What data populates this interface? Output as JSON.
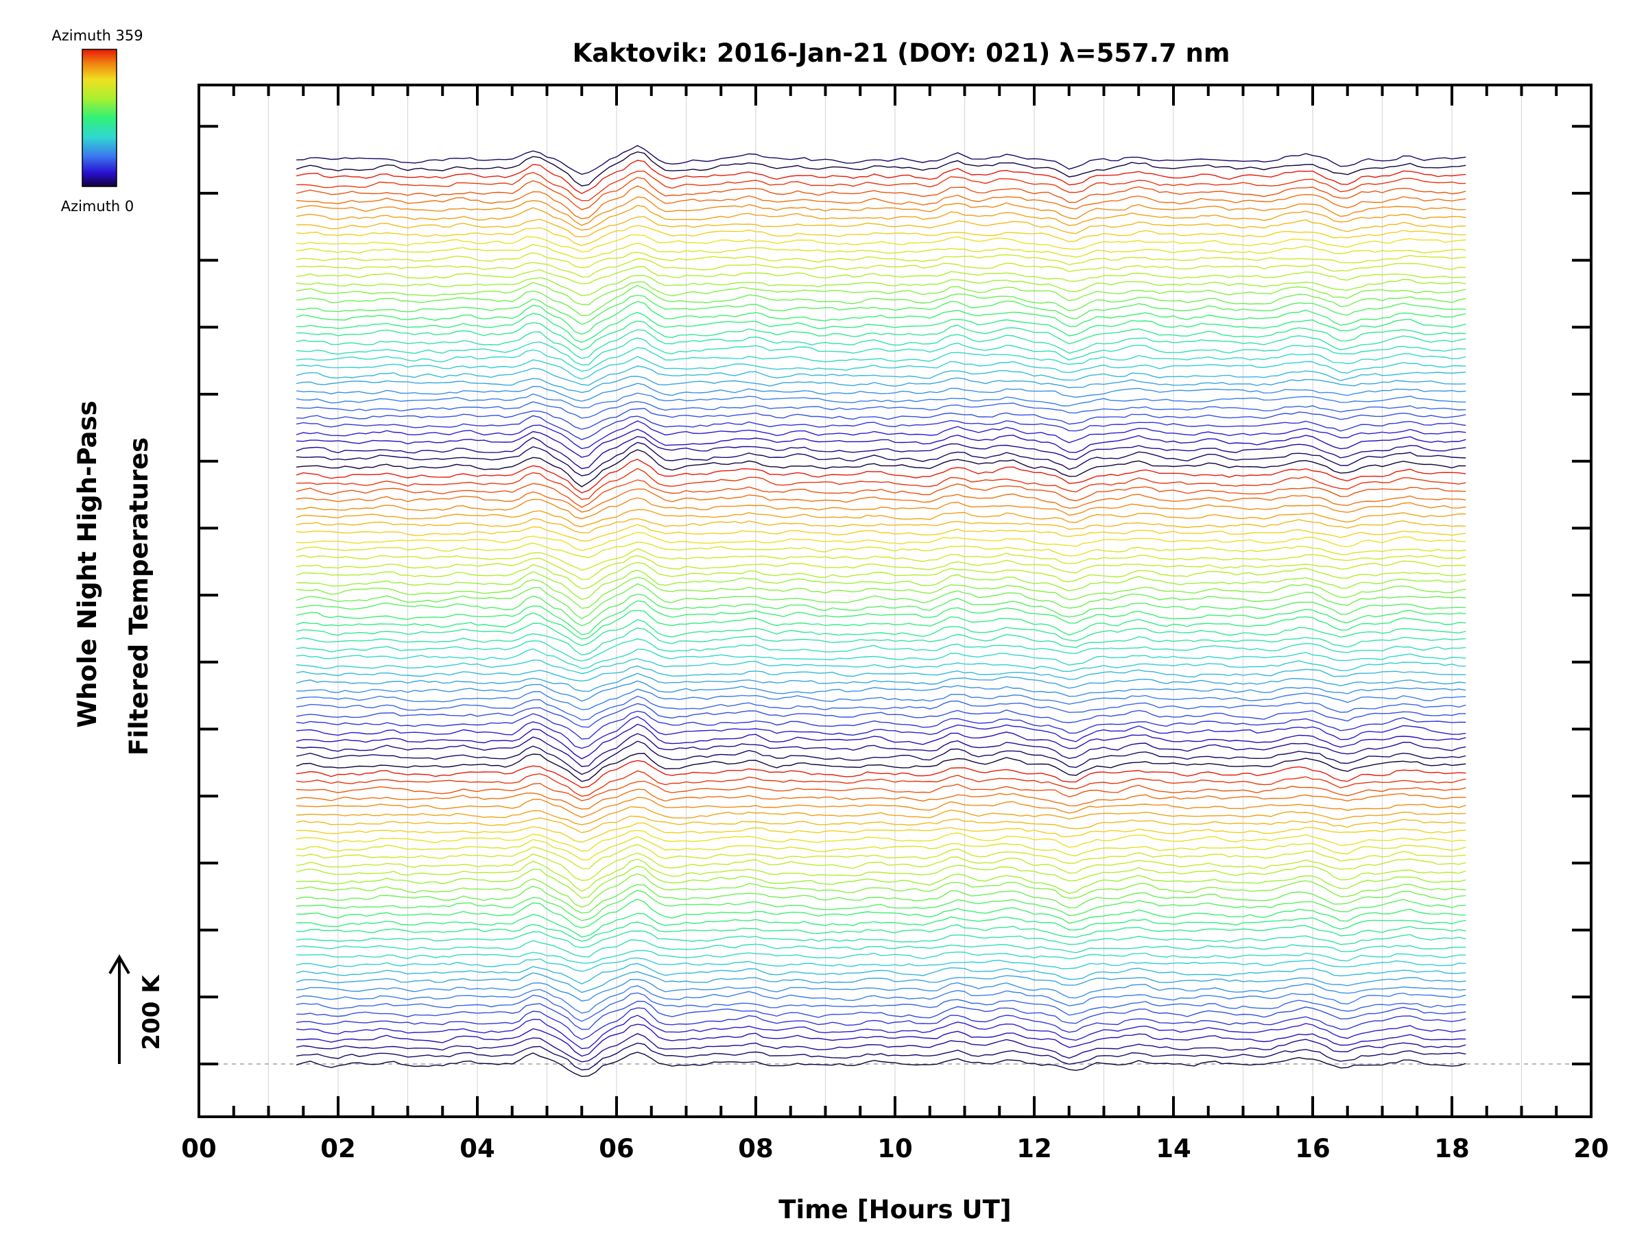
{
  "chart_data": {
    "type": "line",
    "title": "Kaktovik: 2016-Jan-21 (DOY: 021) λ=557.7 nm",
    "xlabel": "Time [Hours UT]",
    "ylabel_line1": "Whole Night High-Pass",
    "ylabel_line2": "Filtered Temperatures",
    "scale_label": "200 K",
    "xlim": [
      0,
      20
    ],
    "x_tick_labels": [
      "00",
      "02",
      "04",
      "06",
      "08",
      "10",
      "12",
      "14",
      "16",
      "18",
      "20"
    ],
    "time_range": [
      1.4,
      18.2
    ],
    "series_count": 110,
    "offset_units": 1,
    "colorbar": {
      "top_label": "Azimuth  359",
      "bottom_label": "Azimuth  0",
      "min": 0,
      "max": 359,
      "colormap": "rainbow"
    },
    "features": [
      {
        "time": 4.8,
        "kind": "peak",
        "amplitude": 1.0
      },
      {
        "time": 5.5,
        "kind": "trough",
        "amplitude": -1.6
      },
      {
        "time": 6.3,
        "kind": "peak",
        "amplitude": 1.4
      },
      {
        "time": 7.9,
        "kind": "peak",
        "amplitude": 0.6
      },
      {
        "time": 10.9,
        "kind": "peak",
        "amplitude": 0.6
      },
      {
        "time": 11.6,
        "kind": "peak",
        "amplitude": 0.8
      },
      {
        "time": 12.5,
        "kind": "trough",
        "amplitude": -0.9
      },
      {
        "time": 13.6,
        "kind": "peak",
        "amplitude": 0.4
      },
      {
        "time": 15.9,
        "kind": "peak",
        "amplitude": 0.6
      },
      {
        "time": 16.5,
        "kind": "trough",
        "amplitude": -0.5
      },
      {
        "time": 17.4,
        "kind": "peak",
        "amplitude": 0.6
      }
    ]
  },
  "colors": {
    "axis": "#000000",
    "grid": "#d9d9d9",
    "baseline": "#a0a0a0"
  }
}
